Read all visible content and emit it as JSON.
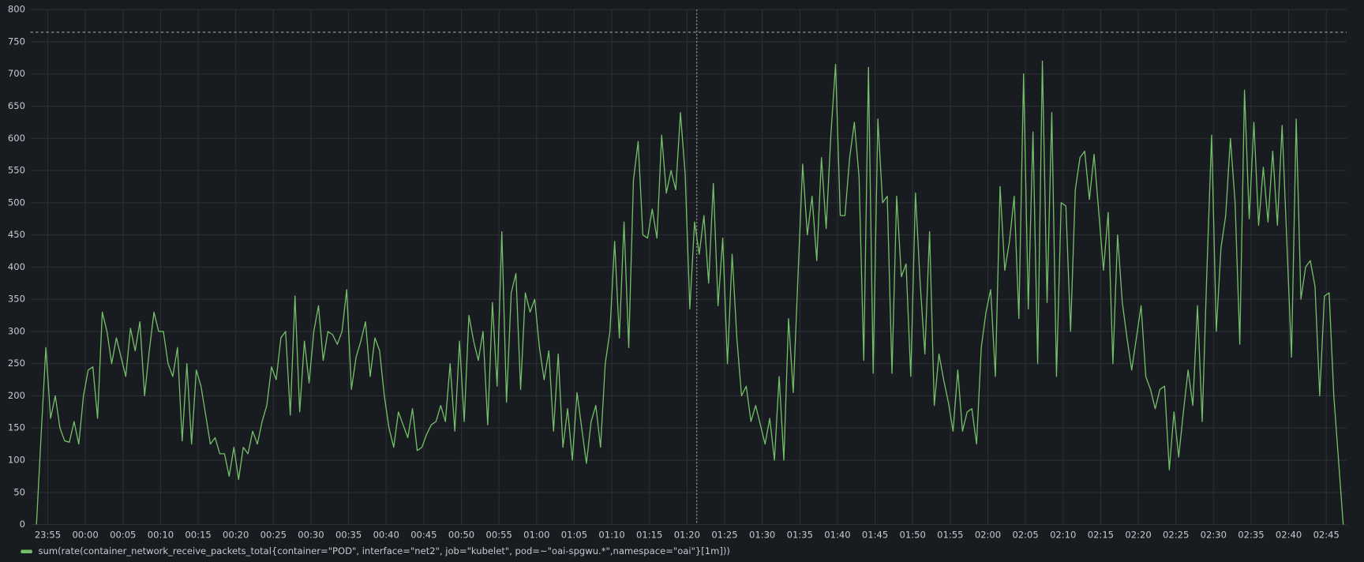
{
  "chart_data": {
    "type": "line",
    "x": [
      -1.5,
      -0.875,
      -0.25,
      0.375,
      1,
      1.625,
      2.25,
      2.875,
      3.5,
      4.125,
      4.75,
      5.375,
      6,
      6.625,
      7.25,
      7.875,
      8.5,
      9.125,
      9.75,
      10.375,
      11,
      11.625,
      12.25,
      12.875,
      13.5,
      14.125,
      14.75,
      15.375,
      16,
      16.625,
      17.25,
      17.875,
      18.5,
      19.125,
      19.75,
      20.375,
      21,
      21.625,
      22.25,
      22.875,
      23.5,
      24.125,
      24.75,
      25.375,
      26,
      26.625,
      27.25,
      27.875,
      28.5,
      29.125,
      29.75,
      30.375,
      31,
      31.625,
      32.25,
      32.875,
      33.5,
      34.125,
      34.75,
      35.375,
      36,
      36.625,
      37.25,
      37.875,
      38.5,
      39.125,
      39.75,
      40.375,
      41,
      41.625,
      42.25,
      42.875,
      43.5,
      44.125,
      44.75,
      45.375,
      46,
      46.625,
      47.25,
      47.875,
      48.5,
      49.125,
      49.75,
      50.375,
      51,
      51.625,
      52.25,
      52.875,
      53.5,
      54.125,
      54.75,
      55.375,
      56,
      56.625,
      57.25,
      57.875,
      58.5,
      59.125,
      59.75,
      60.375,
      61,
      61.625,
      62.25,
      62.875,
      63.5,
      64.125,
      64.75,
      65.375,
      66,
      66.625,
      67.25,
      67.875,
      68.5,
      69.125,
      69.75,
      70.375,
      71,
      71.625,
      72.25,
      72.875,
      73.5,
      74.125,
      74.75,
      75.375,
      76,
      76.625,
      77.25,
      77.875,
      78.5,
      79.125,
      79.75,
      80.375,
      81,
      81.625,
      82.25,
      82.875,
      83.5,
      84.125,
      84.75,
      85.375,
      86,
      86.625,
      87.25,
      87.875,
      88.5,
      89.125,
      89.75,
      90.375,
      91,
      91.625,
      92.25,
      92.875,
      93.5,
      94.125,
      94.75,
      95.375,
      96,
      96.625,
      97.25,
      97.875,
      98.5,
      99.125,
      99.75,
      100.375,
      101,
      101.625,
      102.25,
      102.875,
      103.5,
      104.125,
      104.75,
      105.375,
      106,
      106.625,
      107.25,
      107.875,
      108.5,
      109.125,
      109.75,
      110.375,
      111,
      111.625,
      112.25,
      112.875,
      113.5,
      114.125,
      114.75,
      115.375,
      116,
      116.625,
      117.25,
      117.875,
      118.5,
      119.125,
      119.75,
      120.375,
      121,
      121.625,
      122.25,
      122.875,
      123.5,
      124.125,
      124.75,
      125.375,
      126,
      126.625,
      127.25,
      127.875,
      128.5,
      129.125,
      129.75,
      130.375,
      131,
      131.625,
      132.25,
      132.875,
      133.5,
      134.125,
      134.75,
      135.375,
      136,
      136.625,
      137.25,
      137.875,
      138.5,
      139.125,
      139.75,
      140.375,
      141,
      141.625,
      142.25,
      142.875,
      143.5,
      144.125,
      144.75,
      145.375,
      146,
      146.625,
      147.25,
      147.875,
      148.5,
      149.125,
      149.75,
      150.375,
      151,
      151.625,
      152.25,
      152.875,
      153.5,
      154.125,
      154.75,
      155.375,
      156,
      156.625,
      157.25,
      157.875,
      158.5,
      159.125,
      159.75,
      160.375,
      161,
      161.625,
      162.25,
      162.875,
      163.5,
      164.125,
      164.75,
      165.375,
      166,
      166.625,
      167.25,
      167.875,
      168.5,
      169.125,
      169.75,
      170.375,
      171,
      171.625,
      172.25
    ],
    "series": [
      {
        "name": "sum(rate(container_network_receive_packets_total{container=\"POD\", interface=\"net2\", job=\"kubelet\", pod=~\"oai-spgwu.*\",namespace=\"oai\"}[1m]))",
        "color": "#73bf69",
        "values": [
          0,
          140,
          275,
          165,
          200,
          150,
          130,
          128,
          160,
          125,
          200,
          240,
          245,
          165,
          330,
          300,
          250,
          290,
          260,
          230,
          305,
          270,
          315,
          200,
          270,
          330,
          300,
          300,
          250,
          230,
          275,
          130,
          250,
          125,
          240,
          215,
          170,
          125,
          135,
          110,
          110,
          75,
          120,
          70,
          120,
          110,
          145,
          125,
          160,
          185,
          245,
          225,
          290,
          300,
          170,
          355,
          175,
          285,
          220,
          300,
          340,
          255,
          300,
          295,
          280,
          300,
          365,
          210,
          260,
          285,
          315,
          230,
          290,
          270,
          200,
          150,
          120,
          175,
          155,
          135,
          180,
          115,
          120,
          140,
          155,
          160,
          185,
          160,
          250,
          145,
          285,
          160,
          325,
          285,
          255,
          300,
          155,
          345,
          215,
          455,
          190,
          360,
          390,
          210,
          360,
          330,
          350,
          275,
          225,
          270,
          145,
          265,
          120,
          180,
          100,
          205,
          150,
          95,
          160,
          185,
          120,
          250,
          300,
          440,
          290,
          470,
          275,
          535,
          595,
          450,
          445,
          490,
          445,
          605,
          515,
          550,
          520,
          640,
          545,
          335,
          470,
          420,
          480,
          375,
          530,
          340,
          445,
          250,
          420,
          290,
          200,
          215,
          160,
          185,
          155,
          125,
          165,
          100,
          230,
          100,
          320,
          205,
          385,
          560,
          450,
          510,
          410,
          570,
          460,
          605,
          715,
          480,
          480,
          570,
          625,
          540,
          255,
          710,
          235,
          630,
          500,
          510,
          235,
          510,
          385,
          405,
          230,
          515,
          375,
          265,
          455,
          185,
          265,
          225,
          190,
          145,
          240,
          145,
          175,
          180,
          125,
          275,
          330,
          365,
          230,
          525,
          395,
          440,
          510,
          320,
          700,
          335,
          610,
          250,
          720,
          345,
          640,
          230,
          500,
          495,
          300,
          520,
          570,
          580,
          505,
          575,
          485,
          395,
          485,
          250,
          450,
          345,
          290,
          240,
          290,
          340,
          230,
          210,
          180,
          210,
          215,
          85,
          175,
          105,
          175,
          240,
          185,
          340,
          160,
          395,
          605,
          300,
          430,
          480,
          600,
          500,
          280,
          675,
          475,
          625,
          465,
          555,
          470,
          580,
          465,
          620,
          440,
          260,
          630,
          350,
          400,
          410,
          370,
          200,
          355,
          360,
          200,
          100,
          0
        ]
      }
    ],
    "xlim": [
      -2.3,
      172.7
    ],
    "xticks": [
      {
        "value": 0,
        "label": "23:55"
      },
      {
        "value": 5,
        "label": "00:00"
      },
      {
        "value": 10,
        "label": "00:05"
      },
      {
        "value": 15,
        "label": "00:10"
      },
      {
        "value": 20,
        "label": "00:15"
      },
      {
        "value": 25,
        "label": "00:20"
      },
      {
        "value": 30,
        "label": "00:25"
      },
      {
        "value": 35,
        "label": "00:30"
      },
      {
        "value": 40,
        "label": "00:35"
      },
      {
        "value": 45,
        "label": "00:40"
      },
      {
        "value": 50,
        "label": "00:45"
      },
      {
        "value": 55,
        "label": "00:50"
      },
      {
        "value": 60,
        "label": "00:55"
      },
      {
        "value": 65,
        "label": "01:00"
      },
      {
        "value": 70,
        "label": "01:05"
      },
      {
        "value": 75,
        "label": "01:10"
      },
      {
        "value": 80,
        "label": "01:15"
      },
      {
        "value": 85,
        "label": "01:20"
      },
      {
        "value": 90,
        "label": "01:25"
      },
      {
        "value": 95,
        "label": "01:30"
      },
      {
        "value": 100,
        "label": "01:35"
      },
      {
        "value": 105,
        "label": "01:40"
      },
      {
        "value": 110,
        "label": "01:45"
      },
      {
        "value": 115,
        "label": "01:50"
      },
      {
        "value": 120,
        "label": "01:55"
      },
      {
        "value": 125,
        "label": "02:00"
      },
      {
        "value": 130,
        "label": "02:05"
      },
      {
        "value": 135,
        "label": "02:10"
      },
      {
        "value": 140,
        "label": "02:15"
      },
      {
        "value": 145,
        "label": "02:20"
      },
      {
        "value": 150,
        "label": "02:25"
      },
      {
        "value": 155,
        "label": "02:30"
      },
      {
        "value": 160,
        "label": "02:35"
      },
      {
        "value": 165,
        "label": "02:40"
      },
      {
        "value": 170,
        "label": "02:45"
      }
    ],
    "ylim": [
      0,
      800
    ],
    "yticks": [
      0,
      50,
      100,
      150,
      200,
      250,
      300,
      350,
      400,
      450,
      500,
      550,
      600,
      650,
      700,
      750,
      800
    ],
    "grid": true
  }
}
